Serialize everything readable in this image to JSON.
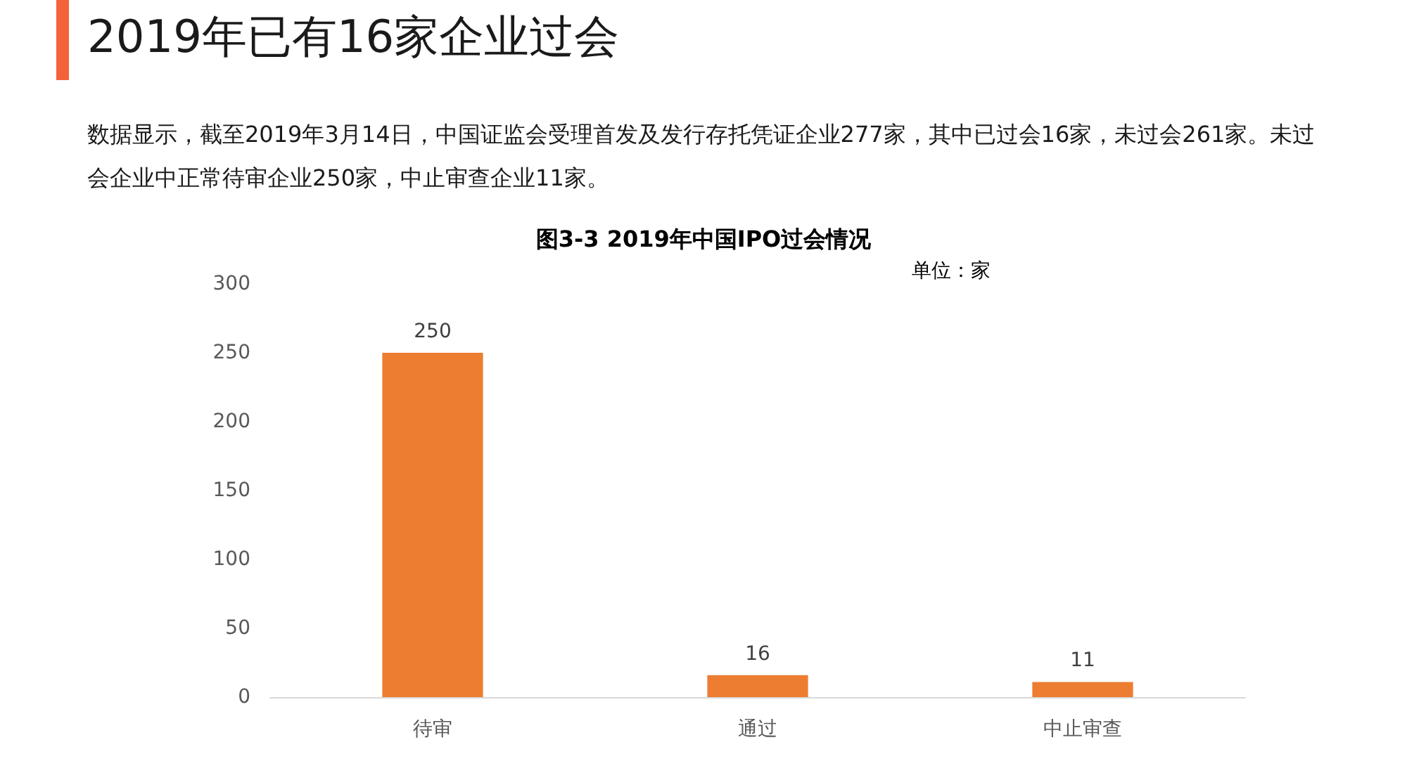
{
  "chart_data": {
    "type": "bar",
    "title": "2019年已有16家企业过会",
    "subtitle": "数据显示，截至2019年3月14日，中国证监会受理首发及发行存托凭证企业277家，其中已过会16家，未过会261家。未过会企业中正常待审企业250家，中止审查企业11家。",
    "annotations": [
      "图3-3 2019年中国IPO过会情况",
      "单位：家"
    ],
    "categories": [
      "待审",
      "通过",
      "中止审查"
    ],
    "values": [
      250,
      16,
      11
    ],
    "color": "#ed7d31",
    "ylim": [
      0,
      300
    ],
    "yticks": [
      0,
      50,
      100,
      150,
      200,
      250,
      300
    ],
    "grid": false,
    "data_labels": true
  }
}
